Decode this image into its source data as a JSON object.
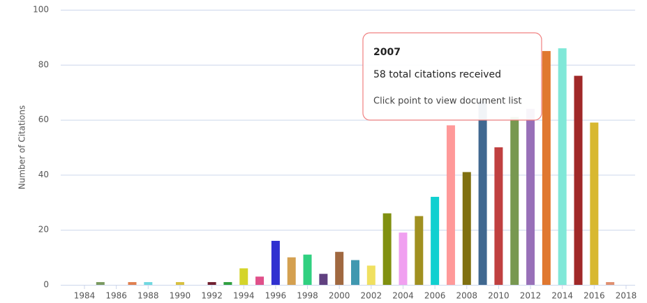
{
  "chart_data": {
    "type": "bar",
    "y_label": "Number of Citations",
    "categories": [
      "1984",
      null,
      "1986",
      null,
      "1988",
      null,
      "1990",
      null,
      "1992",
      null,
      "1994",
      null,
      "1996",
      null,
      "1998",
      null,
      "2000",
      null,
      "2002",
      null,
      "2004",
      null,
      "2006",
      null,
      "2008",
      null,
      "2010",
      null,
      "2012",
      null,
      "2014",
      null,
      "2016",
      null,
      "2018"
    ],
    "values": [
      0,
      1,
      0,
      1,
      1,
      0,
      1,
      0,
      1,
      1,
      6,
      3,
      16,
      10,
      11,
      4,
      12,
      9,
      7,
      26,
      19,
      25,
      32,
      58,
      41,
      67,
      50,
      61,
      64,
      85,
      86,
      76,
      59,
      1,
      0
    ],
    "colors": [
      "#999999",
      "#7a9a60",
      "#999999",
      "#e08050",
      "#70d8e0",
      "#999999",
      "#d8c040",
      "#999999",
      "#702030",
      "#30a040",
      "#d4d42a",
      "#e0508a",
      "#3030d0",
      "#d4a050",
      "#30d080",
      "#604080",
      "#a06840",
      "#4098b0",
      "#f0e060",
      "#809010",
      "#f0a0f0",
      "#a09020",
      "#10d0d0",
      "#ff9999",
      "#807010",
      "#406890",
      "#c04040",
      "#789850",
      "#9870b8",
      "#e07830",
      "#80e8d8",
      "#a02828",
      "#d8b830",
      "#e09070",
      "#999999"
    ],
    "ylim": [
      0,
      100
    ],
    "yticks": [
      0,
      20,
      40,
      60,
      80,
      100
    ],
    "grid": true,
    "tooltip": {
      "title": "2007",
      "line1": "58 total citations received",
      "line2": "Click point to view document list"
    }
  }
}
